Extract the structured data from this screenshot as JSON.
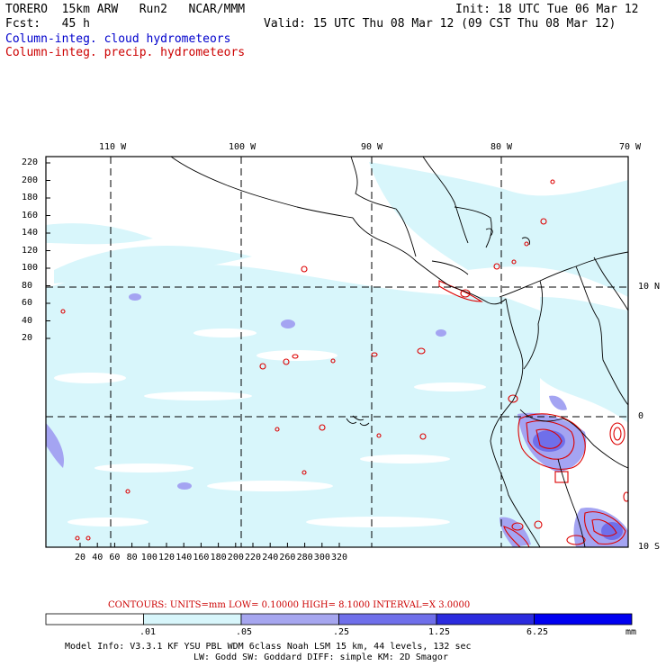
{
  "header": {
    "model": "TORERO  15km ARW   Run2   NCAR/MMM",
    "init": "Init: 18 UTC Tue 06 Mar 12",
    "fcst": "Fcst:   45 h",
    "valid": "Valid: 15 UTC Thu 08 Mar 12 (09 CST Thu 08 Mar 12)",
    "field1": "Column-integ. cloud hydrometeors",
    "field2": "Column-integ. precip. hydrometeors"
  },
  "map": {
    "lon_labels": [
      "110 W",
      "100 W",
      "90 W",
      "80 W",
      "70 W"
    ],
    "lat_labels": [
      "10 N",
      "0",
      "10 S"
    ],
    "y_ticks": [
      "220",
      "200",
      "180",
      "160",
      "140",
      "120",
      "100",
      "80",
      "60",
      "40",
      "20"
    ],
    "x_ticks": [
      "20",
      "40",
      "60",
      "80",
      "100",
      "120",
      "140",
      "160",
      "180",
      "200",
      "220",
      "240",
      "260",
      "280",
      "300",
      "320"
    ],
    "colors": {
      "cloud_light": "#d8f6fb",
      "cloud_mid": "#a4a4f2",
      "precip_contour": "#dd0000",
      "grid": "#000000"
    }
  },
  "contour_info": {
    "label": "CONTOURS:  UNITS=mm  LOW= 0.10000      HIGH=  8.1000      INTERVAL=X  3.0000"
  },
  "colorbar": {
    "levels": [
      ".01",
      ".05",
      ".25",
      "1.25",
      "6.25"
    ],
    "unit": "mm",
    "colors": [
      "#ffffff",
      "#d8f6fb",
      "#a6a6ef",
      "#6f6fea",
      "#2b2bde",
      "#0000f0"
    ]
  },
  "footer": {
    "line1": "Model Info: V3.3.1   KF      YSU PBL  WDM 6class  Noah LSM  15 km,   44 levels,  132 sec",
    "line2": "LW: Godd SW: Goddard DIFF: simple KM: 2D Smagor"
  }
}
